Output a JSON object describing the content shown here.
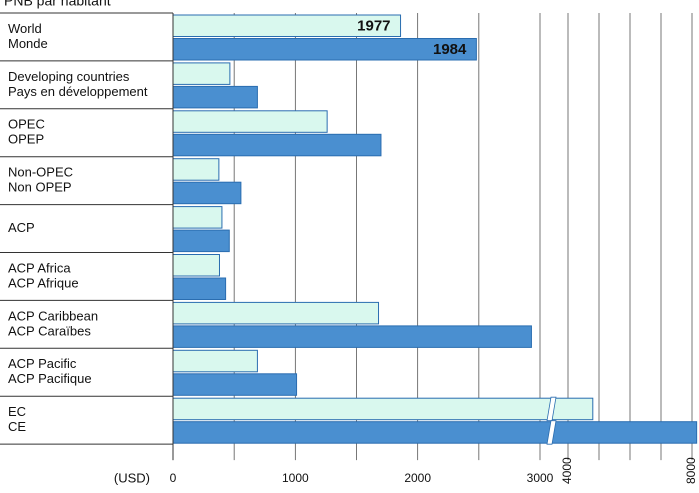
{
  "chart_data": {
    "type": "broken-hbar",
    "title": "PNB par habitant",
    "unit_label": "(USD)",
    "categories": [
      [
        "World",
        "Monde"
      ],
      [
        "Developing countries",
        "Pays en développement"
      ],
      [
        "OPEC",
        "OPEP"
      ],
      [
        "Non-OPEC",
        "Non OPEP"
      ],
      [
        "ACP"
      ],
      [
        "ACP Africa",
        "ACP Afrique"
      ],
      [
        "ACP Caribbean",
        "ACP Caraïbes"
      ],
      [
        "ACP Pacific",
        "ACP Pacifique"
      ],
      [
        "EC",
        "CE"
      ]
    ],
    "series": [
      {
        "name": "1977",
        "color": "#d9f8ee",
        "values": [
          1860,
          465,
          1260,
          375,
          400,
          380,
          1680,
          690,
          4800
        ]
      },
      {
        "name": "1984",
        "color": "#4a8fd0",
        "values": [
          2480,
          690,
          1700,
          555,
          460,
          430,
          2930,
          1010,
          8150
        ]
      }
    ],
    "xlim": [
      0,
      8000
    ],
    "xbreak": [
      3000,
      4000
    ],
    "xticks": [
      0,
      1000,
      2000,
      3000,
      4000,
      8000
    ],
    "xminorticks": [
      500,
      1500,
      2500,
      5000,
      6000,
      7000
    ],
    "grid": true
  }
}
